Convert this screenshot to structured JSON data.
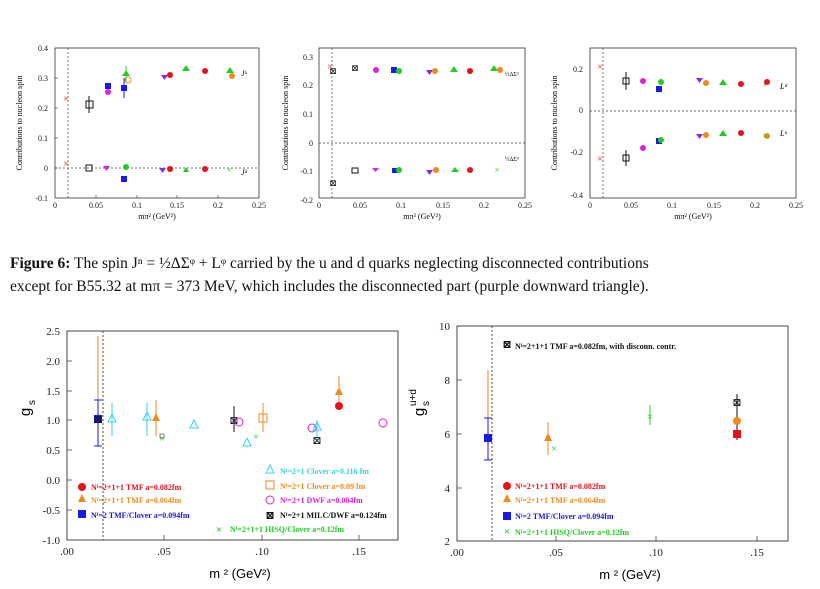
{
  "figure_top": {
    "panels": [
      {
        "ylabel": "Contributions to nucleon spin",
        "xlabel": "mπ² (GeV²)",
        "yticks": [
          "0.4",
          "0.3",
          "0.2",
          "0.1",
          "0",
          "-0.1"
        ],
        "xticks": [
          "0",
          "0.05",
          "0.1",
          "0.15",
          "0.2",
          "0.25"
        ],
        "labels": [
          "Jᵘ",
          "Jᵈ"
        ]
      },
      {
        "ylabel": "Contributions to nucleon spin",
        "xlabel": "mπ² (GeV²)",
        "yticks": [
          "0.3",
          "0.2",
          "0.1",
          "0",
          "-0.1",
          "-0.2"
        ],
        "xticks": [
          "0",
          "0.05",
          "0.1",
          "0.15",
          "0.2",
          "0.25"
        ],
        "labels": [
          "½ΔΣᵘ",
          "½ΔΣᵈ"
        ]
      },
      {
        "ylabel": "Contributions to nucleon spin",
        "xlabel": "mπ² (GeV²)",
        "yticks": [
          "0.2",
          "0",
          "-0.2",
          "-0.4"
        ],
        "xticks": [
          "0",
          "0.05",
          "0.1",
          "0.15",
          "0.2",
          "0.25"
        ],
        "labels": [
          "Lᵈ",
          "Lᵘ"
        ]
      }
    ]
  },
  "caption": {
    "label": "Figure 6:",
    "line1": "The spin Jⁿ = ½ΔΣᵠ + Lᵠ carried by the u and d quarks neglecting disconnected contributions",
    "line2": "except for B55.32 at mπ = 373 MeV, which includes the disconnected part (purple downward triangle)."
  },
  "figure_bottom_left": {
    "ylabel": "g",
    "ylabel_sub": "s",
    "xlabel": "m  ² (GeV²)",
    "yticks": [
      "2.5",
      "2.0",
      "1.5",
      "1.0",
      "0.5",
      "0.0",
      "-0.5",
      "-1.0"
    ],
    "xticks": [
      ".00",
      ".05",
      ".10",
      ".15"
    ],
    "legend_left": [
      "Nᶠ=2+1+1 TMF   a=0.082fm",
      "Nᶠ=2+1+1 TMF  a=0.064fm",
      "Nᶠ=2 TMF/Clover  a=0.094fm"
    ],
    "legend_right": [
      "Nᶠ=2+1 Clover  a=0.116 fm",
      "Nᶠ=2+1 Clover  a=0.09 fm",
      "Nᶠ=2+1 DWF  a=0.084fm",
      "Nᶠ=2+1  MILC/DWF  a=0.124fm",
      "Nᶠ=2+1+1  HISQ/Clover   a=0.12fm"
    ]
  },
  "figure_bottom_right": {
    "ylabel": "g",
    "ylabel_sub": "s",
    "ylabel_sup": "u+d",
    "xlabel": "m  ² (GeV²)",
    "yticks": [
      "10",
      "8",
      "6",
      "4",
      "2"
    ],
    "xticks": [
      ".00",
      ".05",
      ".10",
      ".15"
    ],
    "legend_top": "Nᶠ=2+1+1 TMF   a=0.082fm, with disconn. contr.",
    "legend_bottom": [
      "Nᶠ=2+1+1 TMF   a=0.082fm",
      "Nᶠ=2+1+1 TMF  a=0.064fm",
      "Nᶠ=2 TMF/Clover a=0.094fm",
      "Nᶠ=2+1+1  HISQ/Clover   a=0.12fm"
    ]
  },
  "colors": {
    "red": "#e8101a",
    "orange": "#f08a1c",
    "blue": "#1a1ae6",
    "green": "#22cc22",
    "cyan": "#33d6e6",
    "magenta": "#dd22dd",
    "black": "#111111",
    "purple": "#8a2be2",
    "salmon": "#f0907a"
  }
}
